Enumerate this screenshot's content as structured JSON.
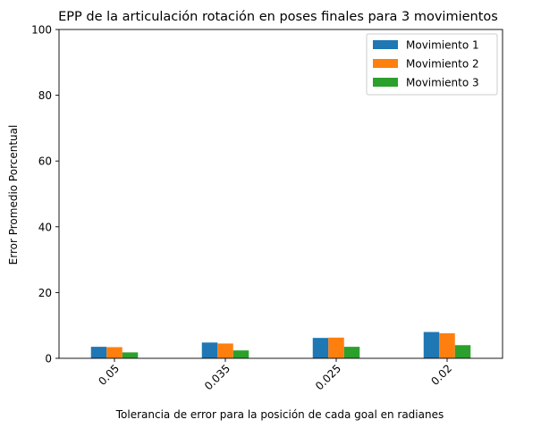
{
  "chart_data": {
    "type": "bar",
    "title": "EPP de la articulación rotación en poses finales para 3 movimientos",
    "xlabel": "Tolerancia de error para la posición de cada goal en radianes",
    "ylabel": "Error Promedio Porcentual",
    "categories": [
      "0.05",
      "0.035",
      "0.025",
      "0.02"
    ],
    "series": [
      {
        "name": "Movimiento 1",
        "color": "#1f77b4",
        "values": [
          3.5,
          4.8,
          6.2,
          8.0
        ]
      },
      {
        "name": "Movimiento 2",
        "color": "#ff7f0e",
        "values": [
          3.4,
          4.5,
          6.3,
          7.6
        ]
      },
      {
        "name": "Movimiento 3",
        "color": "#2ca02c",
        "values": [
          1.8,
          2.4,
          3.5,
          4.0
        ]
      }
    ],
    "ylim": [
      0,
      100
    ],
    "yticks": [
      0,
      20,
      40,
      60,
      80,
      100
    ],
    "grid": false,
    "legend_position": "top-right"
  }
}
